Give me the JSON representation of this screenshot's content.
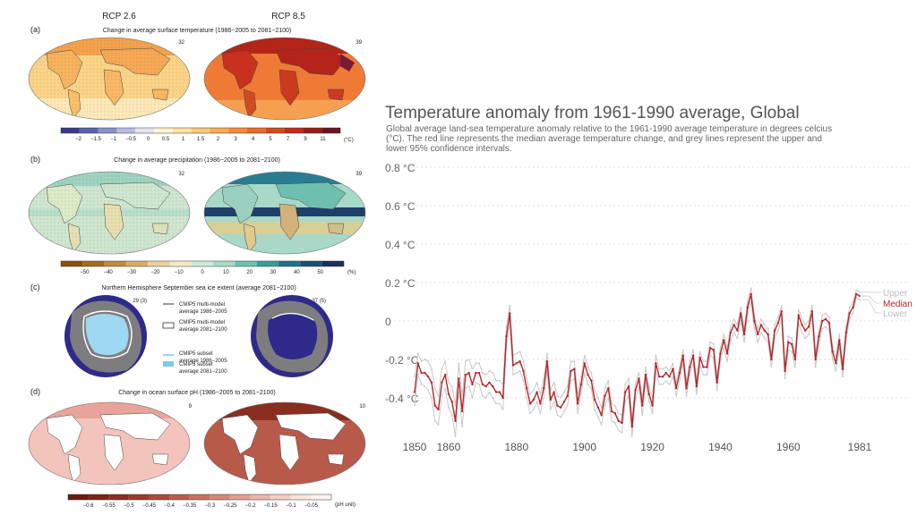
{
  "figure": {
    "col_heads": [
      "RCP 2.6",
      "RCP 8.5"
    ],
    "panels": [
      {
        "letter": "(a)",
        "title": "Change in average surface temperature (1986−2005 to 2081−2100)",
        "counts": [
          "32",
          "39"
        ],
        "scale_ticks": [
          "−2",
          "−1.5",
          "−1",
          "−0.5",
          "0",
          "0.5",
          "1",
          "1.5",
          "2",
          "3",
          "4",
          "5",
          "7",
          "9",
          "11"
        ],
        "unit": "(°C)",
        "scale_colors": [
          "#3a3a8c",
          "#5a63b0",
          "#8892c8",
          "#b7bde0",
          "#e4e4f2",
          "#fff6d0",
          "#fde3a0",
          "#fbcb78",
          "#f7ac56",
          "#f28c3c",
          "#ea6a2a",
          "#d9481e",
          "#bf2d18",
          "#961c1a",
          "#6b1224"
        ]
      },
      {
        "letter": "(b)",
        "title": "Change in average precipitation (1986−2005 to 2081−2100)",
        "counts": [
          "32",
          "39"
        ],
        "scale_ticks": [
          "−50",
          "−40",
          "−30",
          "−20",
          "−10",
          "0",
          "10",
          "20",
          "30",
          "40",
          "50"
        ],
        "unit": "(%)",
        "scale_colors": [
          "#8c510a",
          "#a76a22",
          "#c28a42",
          "#d8ad6a",
          "#ebd29c",
          "#f3e9c8",
          "#cfe8dc",
          "#a6dbc8",
          "#6fc2b0",
          "#3a9d98",
          "#1f7386",
          "#1d4f74",
          "#1b2f5c"
        ]
      },
      {
        "letter": "(c)",
        "title": "Northern Hemisphere September sea ice extent (average 2081−2100)",
        "counts": [
          "29 (3)",
          "37 (5)"
        ],
        "legend": [
          "CMIP5 multi-model",
          "average 1986−2005",
          "CMIP5 multi-model",
          "average 2081−2100",
          "CMIP5 subset",
          "average 1986−2005",
          "CMIP5 subset",
          "average 2081−2100"
        ]
      },
      {
        "letter": "(d)",
        "title": "Change in ocean surface pH (1986−2005 to 2081−2100)",
        "counts": [
          "9",
          "10"
        ],
        "scale_ticks": [
          "−0.6",
          "−0.55",
          "−0.5",
          "−0.45",
          "−0.4",
          "−0.35",
          "−0.3",
          "−0.25",
          "−0.2",
          "−0.15",
          "−0.1",
          "−0.05"
        ],
        "unit": "(pH unit)",
        "scale_colors": [
          "#6b1a12",
          "#7c2418",
          "#8c2e20",
          "#9c3a2a",
          "#ac4a38",
          "#bc5c4a",
          "#ca705e",
          "#d88676",
          "#e49e90",
          "#eeb6aa",
          "#f5cec4",
          "#fae4de",
          "#fdf4f1"
        ]
      }
    ]
  },
  "chart_data": {
    "type": "line",
    "title": "Temperature anomaly from 1961-1990 average, Global",
    "subtitle": "Global average land-sea temperature anomaly relative to the 1961-1990 average temperature in degrees celcius (°C). The red line represents the median average temperature change, and grey lines represent the upper and lower 95% confidence intervals.",
    "subtitle_lines": [
      "Global average land-sea temperature anomaly relative to the 1961-1990 average temperature in degrees celcius",
      "(°C). The red line represents the median average temperature change, and grey lines represent the upper and",
      "lower 95% confidence intervals."
    ],
    "xlabel": "",
    "ylabel": "",
    "xlim": [
      1850,
      1981
    ],
    "ylim": [
      -0.6,
      0.8
    ],
    "x_ticks": [
      "1850",
      "1860",
      "1880",
      "1900",
      "1920",
      "1940",
      "1960",
      "1981"
    ],
    "y_ticks": [
      "0.8 °C",
      "0.6 °C",
      "0.4 °C",
      "0.2 °C",
      "0",
      "-0.2 °C",
      "-0.4 °C"
    ],
    "y_tick_values": [
      0.8,
      0.6,
      0.4,
      0.2,
      0,
      -0.2,
      -0.4
    ],
    "grid": true,
    "x_start": 1850,
    "series": [
      {
        "name": "Median",
        "color": "#b3262a",
        "values": [
          -0.37,
          -0.22,
          -0.27,
          -0.27,
          -0.29,
          -0.32,
          -0.44,
          -0.46,
          -0.32,
          -0.28,
          -0.38,
          -0.42,
          -0.52,
          -0.3,
          -0.47,
          -0.28,
          -0.27,
          -0.33,
          -0.27,
          -0.27,
          -0.33,
          -0.34,
          -0.32,
          -0.34,
          -0.37,
          -0.37,
          -0.4,
          -0.08,
          0.04,
          -0.23,
          -0.22,
          -0.21,
          -0.26,
          -0.35,
          -0.43,
          -0.41,
          -0.37,
          -0.43,
          -0.35,
          -0.21,
          -0.41,
          -0.37,
          -0.44,
          -0.45,
          -0.42,
          -0.39,
          -0.26,
          -0.25,
          -0.43,
          -0.33,
          -0.22,
          -0.28,
          -0.31,
          -0.41,
          -0.45,
          -0.49,
          -0.39,
          -0.35,
          -0.47,
          -0.48,
          -0.52,
          -0.53,
          -0.37,
          -0.34,
          -0.55,
          -0.36,
          -0.3,
          -0.44,
          -0.28,
          -0.38,
          -0.44,
          -0.22,
          -0.29,
          -0.29,
          -0.27,
          -0.29,
          -0.25,
          -0.35,
          -0.27,
          -0.18,
          -0.35,
          -0.24,
          -0.18,
          -0.34,
          -0.19,
          -0.24,
          -0.24,
          -0.14,
          -0.15,
          -0.32,
          -0.17,
          -0.1,
          -0.17,
          -0.06,
          -0.02,
          -0.05,
          0.04,
          -0.07,
          0.07,
          0.14,
          0.0,
          -0.07,
          -0.02,
          -0.05,
          -0.07,
          -0.2,
          -0.05,
          -0.01,
          0.05,
          -0.26,
          -0.11,
          -0.12,
          -0.2,
          0.03,
          -0.02,
          -0.05,
          -0.03,
          0.05,
          -0.2,
          -0.08,
          0.0,
          0.01,
          -0.01,
          -0.16,
          -0.22,
          -0.1,
          -0.25,
          -0.06,
          0.04,
          0.07,
          0.14,
          0.13
        ]
      },
      {
        "name": "Upper",
        "color": "#c8c8c8",
        "values": [
          -0.29,
          -0.17,
          -0.21,
          -0.2,
          -0.21,
          -0.25,
          -0.35,
          -0.39,
          -0.25,
          -0.21,
          -0.32,
          -0.34,
          -0.44,
          -0.22,
          -0.39,
          -0.21,
          -0.2,
          -0.25,
          -0.22,
          -0.22,
          -0.27,
          -0.28,
          -0.26,
          -0.27,
          -0.31,
          -0.31,
          -0.33,
          -0.03,
          0.08,
          -0.18,
          -0.17,
          -0.16,
          -0.21,
          -0.3,
          -0.38,
          -0.36,
          -0.32,
          -0.38,
          -0.3,
          -0.17,
          -0.36,
          -0.32,
          -0.39,
          -0.4,
          -0.37,
          -0.34,
          -0.21,
          -0.21,
          -0.38,
          -0.29,
          -0.18,
          -0.24,
          -0.27,
          -0.36,
          -0.4,
          -0.45,
          -0.35,
          -0.31,
          -0.43,
          -0.44,
          -0.48,
          -0.49,
          -0.33,
          -0.3,
          -0.51,
          -0.32,
          -0.27,
          -0.4,
          -0.24,
          -0.34,
          -0.4,
          -0.18,
          -0.25,
          -0.25,
          -0.24,
          -0.26,
          -0.22,
          -0.32,
          -0.24,
          -0.15,
          -0.32,
          -0.21,
          -0.15,
          -0.31,
          -0.16,
          -0.21,
          -0.21,
          -0.11,
          -0.12,
          -0.29,
          -0.14,
          -0.07,
          -0.14,
          -0.03,
          0.01,
          -0.02,
          0.07,
          -0.04,
          0.1,
          0.17,
          0.03,
          -0.04,
          0.01,
          -0.02,
          -0.04,
          -0.17,
          -0.02,
          0.02,
          0.08,
          -0.23,
          -0.08,
          -0.09,
          -0.17,
          0.06,
          0.01,
          -0.02,
          0.0,
          0.08,
          -0.17,
          -0.05,
          0.03,
          0.04,
          0.02,
          -0.13,
          -0.19,
          -0.07,
          -0.22,
          -0.03,
          0.07,
          0.1,
          0.16,
          0.15
        ]
      },
      {
        "name": "Lower",
        "color": "#c8c8c8",
        "values": [
          -0.44,
          -0.28,
          -0.33,
          -0.34,
          -0.36,
          -0.4,
          -0.52,
          -0.54,
          -0.39,
          -0.35,
          -0.45,
          -0.49,
          -0.6,
          -0.37,
          -0.55,
          -0.35,
          -0.34,
          -0.4,
          -0.32,
          -0.33,
          -0.39,
          -0.4,
          -0.37,
          -0.4,
          -0.43,
          -0.43,
          -0.46,
          -0.14,
          0.0,
          -0.28,
          -0.27,
          -0.26,
          -0.31,
          -0.4,
          -0.48,
          -0.46,
          -0.42,
          -0.48,
          -0.4,
          -0.26,
          -0.46,
          -0.42,
          -0.49,
          -0.5,
          -0.47,
          -0.44,
          -0.31,
          -0.3,
          -0.48,
          -0.38,
          -0.27,
          -0.33,
          -0.35,
          -0.46,
          -0.5,
          -0.54,
          -0.44,
          -0.4,
          -0.52,
          -0.53,
          -0.57,
          -0.58,
          -0.42,
          -0.39,
          -0.6,
          -0.41,
          -0.34,
          -0.49,
          -0.32,
          -0.42,
          -0.48,
          -0.26,
          -0.33,
          -0.33,
          -0.31,
          -0.33,
          -0.29,
          -0.39,
          -0.31,
          -0.22,
          -0.39,
          -0.28,
          -0.22,
          -0.38,
          -0.23,
          -0.28,
          -0.28,
          -0.18,
          -0.19,
          -0.36,
          -0.21,
          -0.14,
          -0.21,
          -0.1,
          -0.06,
          -0.09,
          0.0,
          -0.11,
          0.03,
          0.1,
          -0.04,
          -0.11,
          -0.06,
          -0.09,
          -0.11,
          -0.24,
          -0.09,
          -0.05,
          0.01,
          -0.3,
          -0.15,
          -0.16,
          -0.24,
          -0.01,
          -0.06,
          -0.09,
          -0.07,
          0.01,
          -0.24,
          -0.12,
          -0.04,
          -0.03,
          -0.05,
          -0.2,
          -0.26,
          -0.14,
          -0.29,
          -0.1,
          0.01,
          0.04,
          0.12,
          0.11
        ]
      }
    ],
    "legend_labels": [
      "Upper",
      "Median",
      "Lower"
    ],
    "legend_placement": "right, at last data point"
  }
}
